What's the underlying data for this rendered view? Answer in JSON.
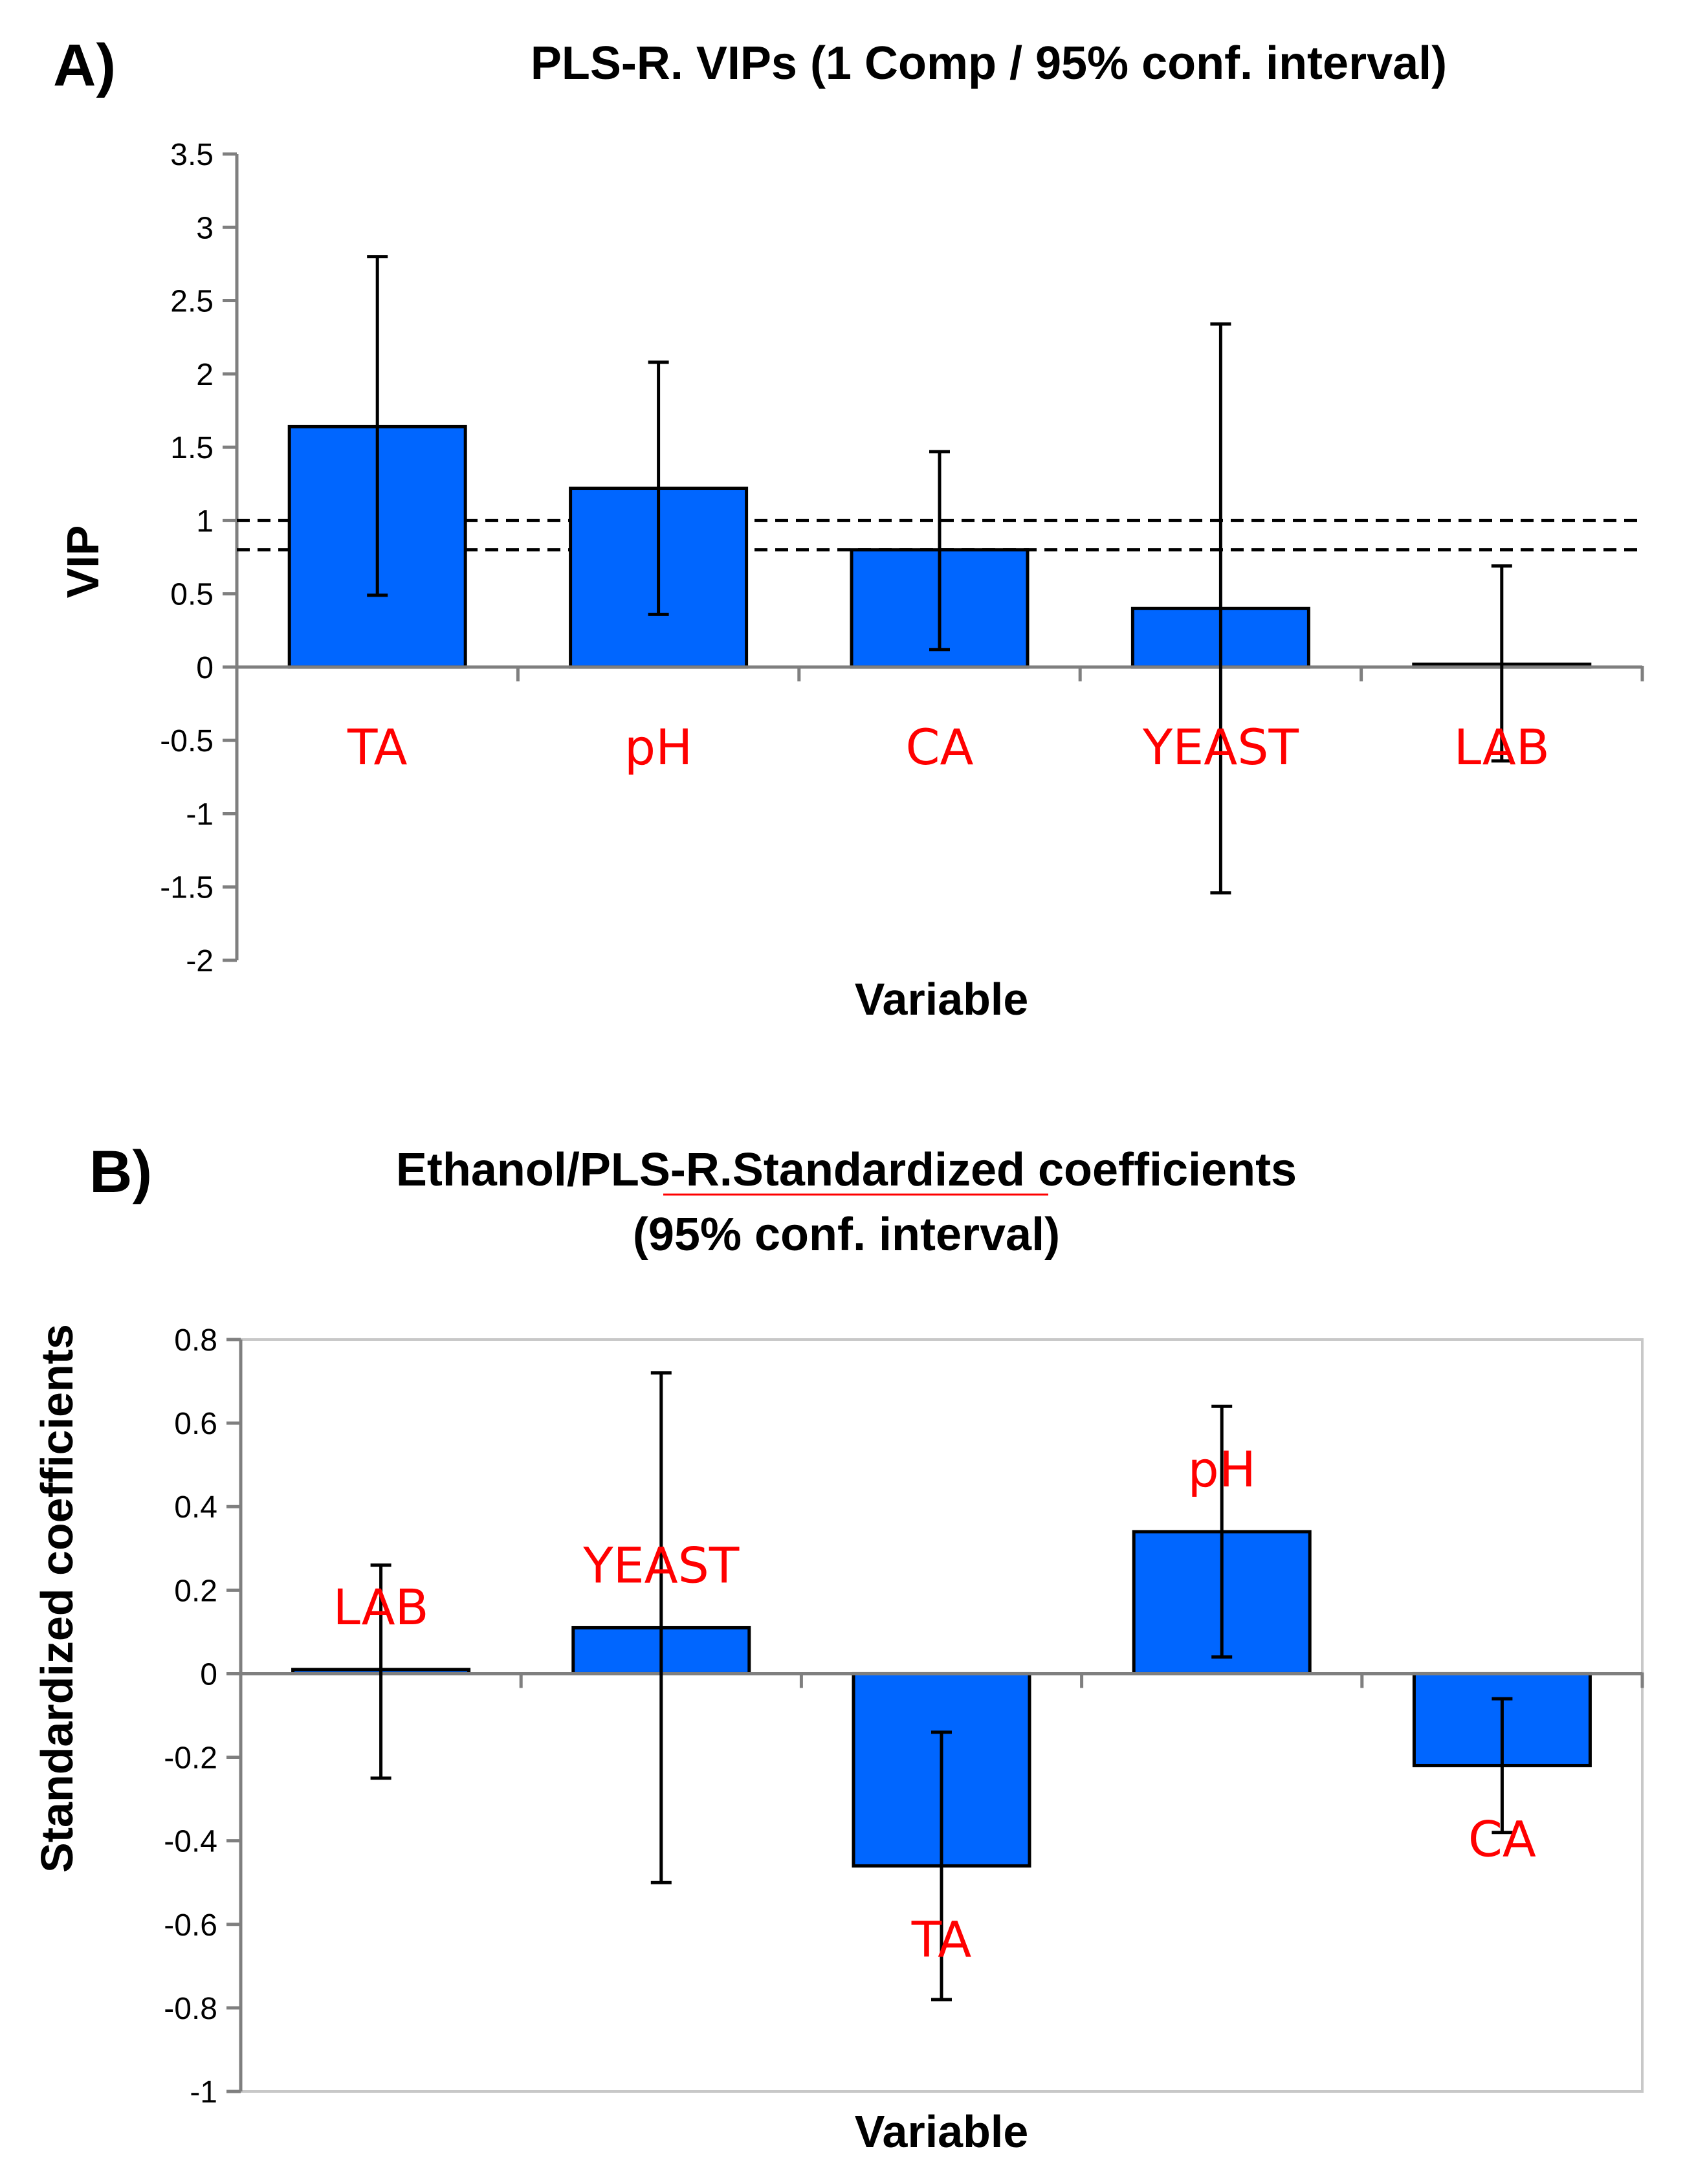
{
  "chart_data": [
    {
      "panel": "A)",
      "type": "bar",
      "title": "PLS-R. VIPs (1 Comp / 95% conf. interval)",
      "xlabel": "Variable",
      "ylabel": "VIP",
      "ylim": [
        -2,
        3.5
      ],
      "yticks": [
        "3.5",
        "3",
        "2.5",
        "2",
        "1.5",
        "1",
        "0.5",
        "0",
        "-0.5",
        "-1",
        "-1.5",
        "-2"
      ],
      "categories": [
        "TA",
        "pH",
        "CA",
        "YEAST",
        "LAB"
      ],
      "values": [
        1.64,
        1.22,
        0.8,
        0.4,
        0.02
      ],
      "err_low": [
        0.49,
        0.36,
        0.12,
        -1.54,
        -0.64
      ],
      "err_high": [
        2.8,
        2.08,
        1.47,
        2.34,
        0.69
      ],
      "reference_lines": [
        1.0,
        0.8
      ],
      "bar_color": "#0066ff",
      "label_color": "#ff0000"
    },
    {
      "panel": "B)",
      "type": "bar",
      "title": "Ethanol/PLS-R.Standardized coefficients",
      "title_line2": "(95% conf. interval)",
      "xlabel": "Variable",
      "ylabel": "Standardized coefficients",
      "ylim": [
        -1,
        0.8
      ],
      "yticks": [
        "0.8",
        "0.6",
        "0.4",
        "0.2",
        "0",
        "-0.2",
        "-0.4",
        "-0.6",
        "-0.8",
        "-1"
      ],
      "categories": [
        "LAB",
        "YEAST",
        "TA",
        "pH",
        "CA"
      ],
      "values": [
        0.01,
        0.11,
        -0.46,
        0.34,
        -0.22
      ],
      "err_low": [
        -0.25,
        -0.5,
        -0.78,
        0.04,
        -0.38
      ],
      "err_high": [
        0.26,
        0.72,
        -0.14,
        0.64,
        -0.06
      ],
      "bar_color": "#0066ff",
      "label_color": "#ff0000"
    }
  ]
}
